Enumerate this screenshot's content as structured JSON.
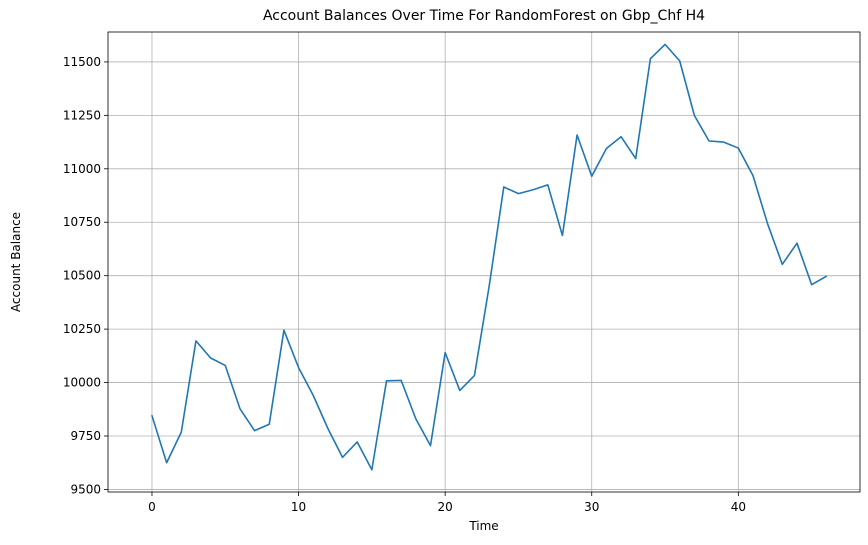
{
  "chart_data": {
    "type": "line",
    "title": "Account Balances Over Time For RandomForest on Gbp_Chf H4",
    "xlabel": "Time",
    "ylabel": "Account Balance",
    "xlim": [
      -3,
      48.3
    ],
    "ylim": [
      9488,
      11640
    ],
    "xticks": [
      0,
      10,
      20,
      30,
      40
    ],
    "yticks": [
      9500,
      9750,
      10000,
      10250,
      10500,
      10750,
      11000,
      11250,
      11500
    ],
    "grid": true,
    "series": [
      {
        "color": "#1f77b4",
        "x": [
          0,
          1,
          2,
          3,
          4,
          5,
          6,
          7,
          8,
          9,
          10,
          11,
          12,
          13,
          14,
          15,
          16,
          17,
          18,
          19,
          20,
          21,
          22,
          23,
          24,
          25,
          26,
          27,
          28,
          29,
          30,
          31,
          32,
          33,
          34,
          35,
          36,
          37,
          38,
          39,
          40,
          41,
          42,
          43,
          44,
          45,
          46
        ],
        "values": [
          9845,
          9625,
          9768,
          10195,
          10115,
          10080,
          9878,
          9775,
          9805,
          10245,
          10070,
          9940,
          9785,
          9650,
          9722,
          9592,
          10008,
          10010,
          9830,
          9705,
          10140,
          9963,
          10033,
          10450,
          10915,
          10884,
          10902,
          10925,
          10688,
          11158,
          10965,
          11095,
          11150,
          11048,
          11515,
          11582,
          11505,
          11250,
          11130,
          11125,
          11097,
          10968,
          10742,
          10553,
          10652,
          10458,
          10497
        ]
      }
    ]
  }
}
